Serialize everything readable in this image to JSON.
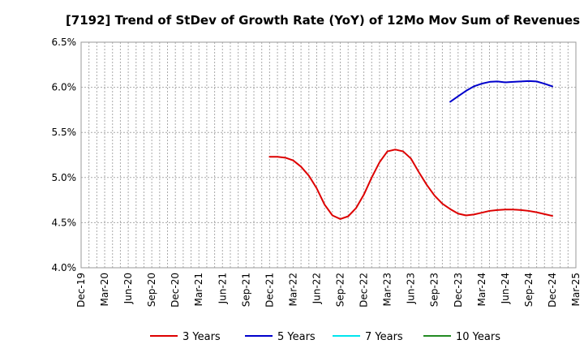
{
  "chart_data": {
    "type": "line",
    "title": "[7192]  Trend of StDev of Growth Rate (YoY) of 12Mo Mov Sum of Revenues",
    "xlabel": "",
    "ylabel": "",
    "ylim": [
      4.0,
      6.5
    ],
    "y_ticks": [
      4.0,
      4.5,
      5.0,
      5.5,
      6.0,
      6.5
    ],
    "y_tick_labels": [
      "4.0%",
      "4.5%",
      "5.0%",
      "5.5%",
      "6.0%",
      "6.5%"
    ],
    "x_range": [
      "Dec-19",
      "Mar-25"
    ],
    "x_tick_labels": [
      "Dec-19",
      "Mar-20",
      "Jun-20",
      "Sep-20",
      "Dec-20",
      "Mar-21",
      "Jun-21",
      "Sep-21",
      "Dec-21",
      "Mar-22",
      "Jun-22",
      "Sep-22",
      "Dec-22",
      "Mar-23",
      "Jun-23",
      "Sep-23",
      "Dec-23",
      "Mar-24",
      "Jun-24",
      "Sep-24",
      "Dec-24",
      "Mar-25"
    ],
    "grid": true,
    "legend_position": "bottom",
    "series": [
      {
        "name": "3 Years",
        "color": "#dd0000",
        "x": [
          "Dec-21",
          "Jan-22",
          "Feb-22",
          "Mar-22",
          "Apr-22",
          "May-22",
          "Jun-22",
          "Jul-22",
          "Aug-22",
          "Sep-22",
          "Oct-22",
          "Nov-22",
          "Dec-22",
          "Jan-23",
          "Feb-23",
          "Mar-23",
          "Apr-23",
          "May-23",
          "Jun-23",
          "Jul-23",
          "Aug-23",
          "Sep-23",
          "Oct-23",
          "Nov-23",
          "Dec-23",
          "Jan-24",
          "Feb-24",
          "Mar-24",
          "Apr-24",
          "May-24",
          "Jun-24",
          "Jul-24",
          "Aug-24",
          "Sep-24",
          "Oct-24",
          "Nov-24",
          "Dec-24"
        ],
        "values": [
          5.23,
          5.23,
          5.22,
          5.19,
          5.12,
          5.02,
          4.88,
          4.7,
          4.58,
          4.54,
          4.57,
          4.66,
          4.81,
          5.0,
          5.17,
          5.29,
          5.31,
          5.29,
          5.21,
          5.06,
          4.92,
          4.8,
          4.71,
          4.65,
          4.6,
          4.58,
          4.59,
          4.61,
          4.63,
          4.64,
          4.645,
          4.645,
          4.64,
          4.63,
          4.615,
          4.595,
          4.575
        ]
      },
      {
        "name": "5 Years",
        "color": "#0000cc",
        "x": [
          "Nov-23",
          "Dec-23",
          "Jan-24",
          "Feb-24",
          "Mar-24",
          "Apr-24",
          "May-24",
          "Jun-24",
          "Jul-24",
          "Aug-24",
          "Sep-24",
          "Oct-24",
          "Nov-24",
          "Dec-24"
        ],
        "values": [
          5.84,
          5.9,
          5.96,
          6.01,
          6.04,
          6.06,
          6.065,
          6.055,
          6.06,
          6.065,
          6.07,
          6.065,
          6.04,
          6.01
        ]
      },
      {
        "name": "7 Years",
        "color": "#00e5ee",
        "x": [],
        "values": []
      },
      {
        "name": "10 Years",
        "color": "#228b22",
        "x": [],
        "values": []
      }
    ]
  }
}
